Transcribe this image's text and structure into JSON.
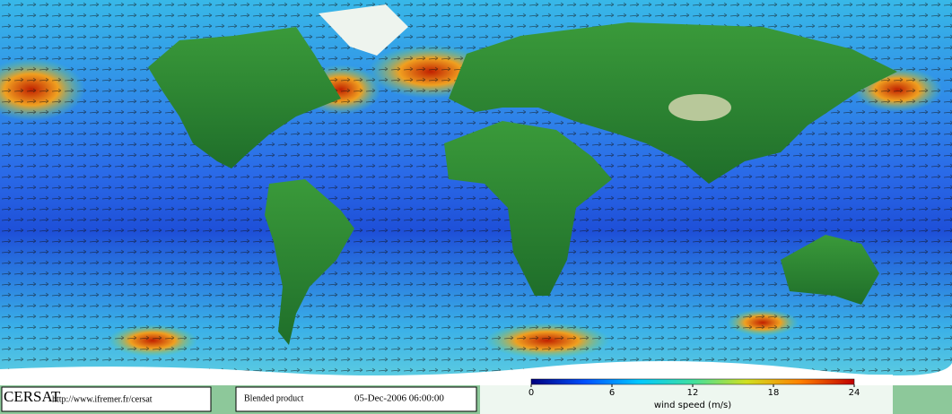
{
  "logo": "CERSAT",
  "url": "http://www.ifremer.fr/cersat",
  "product": "Blended product",
  "timestamp": "05-Dec-2006 06:00:00",
  "colorbar": {
    "label": "wind speed (m/s)",
    "lim": [
      0,
      24
    ],
    "ticks": [
      0,
      6,
      12,
      18,
      24
    ],
    "colors": [
      "#00007f",
      "#0050ff",
      "#00c8ff",
      "#40e0a0",
      "#d0e020",
      "#ff8000",
      "#c00000"
    ]
  }
}
